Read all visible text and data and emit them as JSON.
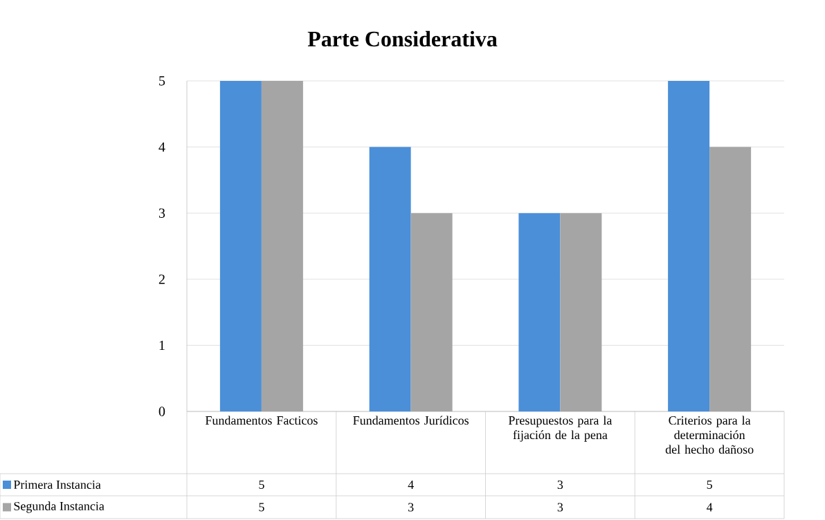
{
  "chart_data": {
    "type": "bar",
    "title": "Parte Considerativa",
    "categories": [
      "Fundamentos Facticos",
      "Fundamentos Jurídicos",
      "Presupuestos para la fijación de la pena",
      "Criterios para la determinación del hecho dañoso"
    ],
    "series": [
      {
        "name": "Primera Instancia",
        "color": "#4a8fd8",
        "values": [
          5,
          4,
          3,
          5
        ]
      },
      {
        "name": "Segunda Instancia",
        "color": "#a5a5a5",
        "values": [
          5,
          3,
          3,
          4
        ]
      }
    ],
    "ylim": [
      0,
      5
    ],
    "yticks": [
      0,
      1,
      2,
      3,
      4,
      5
    ],
    "grid": "y",
    "legend": "bottom",
    "data_labels": true
  }
}
